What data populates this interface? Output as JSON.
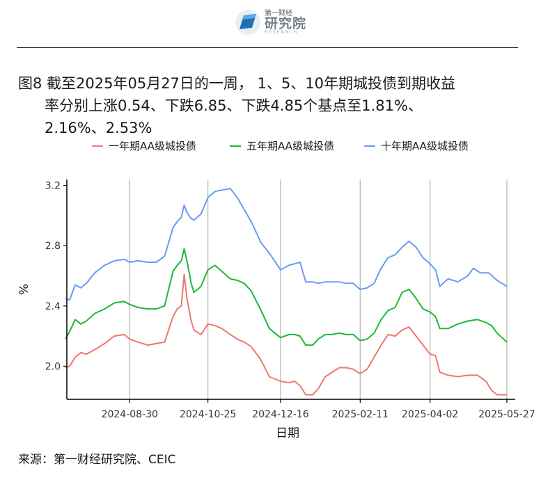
{
  "header": {
    "logo_small": "第一财经",
    "logo_big": "研究院",
    "logo_en": "RESEARCH"
  },
  "title_line1": "图8  截至2025年05月27日的一周， 1、5、10年期城投债到期收益",
  "title_line2": "率分别上涨0.54、下跌6.85、下跌4.85个基点至1.81%、",
  "title_line3": "2.16%、2.53%",
  "source": "来源：第一财经研究院、CEIC",
  "colors": {
    "s1": "#F07670",
    "s5": "#1DB835",
    "s10": "#6A9AF1"
  },
  "chart_data": {
    "type": "line",
    "title": "图8  截至2025年05月27日的一周， 1、5、10年期城投债到期收益率分别上涨0.54、下跌6.85、下跌4.85个基点至1.81%、2.16%、2.53%",
    "xlabel": "日期",
    "ylabel": "%",
    "ylim": [
      1.78,
      3.24
    ],
    "yticks": [
      2.0,
      2.4,
      2.8,
      3.2
    ],
    "ytick_labels": [
      "2.0",
      "2.4",
      "2.8",
      "3.2"
    ],
    "xlim": [
      "2024-07-16",
      "2025-06-02"
    ],
    "xticks": [
      "2024-08-30",
      "2024-10-25",
      "2024-12-16",
      "2025-02-11",
      "2025-04-02",
      "2025-05-27"
    ],
    "grid": "vertical lines at x ticks",
    "legend_position": "top",
    "series": [
      {
        "name": "一年期AA级城投债",
        "color": "#F07670",
        "points": [
          [
            "2024-07-15",
            1.99
          ],
          [
            "2024-07-18",
            2.0
          ],
          [
            "2024-07-22",
            2.06
          ],
          [
            "2024-07-26",
            2.09
          ],
          [
            "2024-07-30",
            2.08
          ],
          [
            "2024-08-05",
            2.11
          ],
          [
            "2024-08-12",
            2.15
          ],
          [
            "2024-08-19",
            2.2
          ],
          [
            "2024-08-26",
            2.21
          ],
          [
            "2024-08-30",
            2.18
          ],
          [
            "2024-09-05",
            2.16
          ],
          [
            "2024-09-12",
            2.14
          ],
          [
            "2024-09-18",
            2.15
          ],
          [
            "2024-09-24",
            2.16
          ],
          [
            "2024-09-30",
            2.33
          ],
          [
            "2024-10-03",
            2.38
          ],
          [
            "2024-10-06",
            2.4
          ],
          [
            "2024-10-08",
            2.61
          ],
          [
            "2024-10-10",
            2.45
          ],
          [
            "2024-10-13",
            2.3
          ],
          [
            "2024-10-15",
            2.24
          ],
          [
            "2024-10-20",
            2.21
          ],
          [
            "2024-10-25",
            2.28
          ],
          [
            "2024-10-30",
            2.27
          ],
          [
            "2024-11-04",
            2.25
          ],
          [
            "2024-11-10",
            2.21
          ],
          [
            "2024-11-15",
            2.18
          ],
          [
            "2024-11-20",
            2.16
          ],
          [
            "2024-11-25",
            2.13
          ],
          [
            "2024-12-02",
            2.04
          ],
          [
            "2024-12-08",
            1.93
          ],
          [
            "2024-12-16",
            1.9
          ],
          [
            "2024-12-22",
            1.89
          ],
          [
            "2024-12-26",
            1.9
          ],
          [
            "2024-12-30",
            1.87
          ],
          [
            "2025-01-03",
            1.81
          ],
          [
            "2025-01-08",
            1.81
          ],
          [
            "2025-01-12",
            1.85
          ],
          [
            "2025-01-17",
            1.93
          ],
          [
            "2025-01-22",
            1.96
          ],
          [
            "2025-01-27",
            1.99
          ],
          [
            "2025-02-01",
            1.99
          ],
          [
            "2025-02-06",
            1.98
          ],
          [
            "2025-02-11",
            1.95
          ],
          [
            "2025-02-16",
            1.98
          ],
          [
            "2025-02-21",
            2.06
          ],
          [
            "2025-02-26",
            2.14
          ],
          [
            "2025-03-03",
            2.21
          ],
          [
            "2025-03-08",
            2.2
          ],
          [
            "2025-03-13",
            2.24
          ],
          [
            "2025-03-18",
            2.26
          ],
          [
            "2025-03-23",
            2.2
          ],
          [
            "2025-03-28",
            2.14
          ],
          [
            "2025-04-02",
            2.08
          ],
          [
            "2025-04-06",
            2.07
          ],
          [
            "2025-04-09",
            1.96
          ],
          [
            "2025-04-15",
            1.94
          ],
          [
            "2025-04-22",
            1.93
          ],
          [
            "2025-04-29",
            1.94
          ],
          [
            "2025-05-06",
            1.94
          ],
          [
            "2025-05-12",
            1.9
          ],
          [
            "2025-05-16",
            1.84
          ],
          [
            "2025-05-20",
            1.81
          ],
          [
            "2025-05-27",
            1.81
          ]
        ]
      },
      {
        "name": "五年期AA级城投债",
        "color": "#1DB835",
        "points": [
          [
            "2024-07-15",
            2.18
          ],
          [
            "2024-07-18",
            2.23
          ],
          [
            "2024-07-22",
            2.31
          ],
          [
            "2024-07-26",
            2.28
          ],
          [
            "2024-07-30",
            2.3
          ],
          [
            "2024-08-05",
            2.35
          ],
          [
            "2024-08-12",
            2.38
          ],
          [
            "2024-08-19",
            2.42
          ],
          [
            "2024-08-26",
            2.43
          ],
          [
            "2024-08-30",
            2.41
          ],
          [
            "2024-09-05",
            2.39
          ],
          [
            "2024-09-12",
            2.38
          ],
          [
            "2024-09-18",
            2.38
          ],
          [
            "2024-09-24",
            2.4
          ],
          [
            "2024-09-30",
            2.63
          ],
          [
            "2024-10-03",
            2.67
          ],
          [
            "2024-10-06",
            2.7
          ],
          [
            "2024-10-08",
            2.78
          ],
          [
            "2024-10-10",
            2.7
          ],
          [
            "2024-10-13",
            2.55
          ],
          [
            "2024-10-15",
            2.49
          ],
          [
            "2024-10-20",
            2.53
          ],
          [
            "2024-10-25",
            2.64
          ],
          [
            "2024-10-30",
            2.67
          ],
          [
            "2024-11-04",
            2.63
          ],
          [
            "2024-11-10",
            2.58
          ],
          [
            "2024-11-15",
            2.57
          ],
          [
            "2024-11-20",
            2.55
          ],
          [
            "2024-11-25",
            2.5
          ],
          [
            "2024-12-02",
            2.37
          ],
          [
            "2024-12-08",
            2.25
          ],
          [
            "2024-12-16",
            2.19
          ],
          [
            "2024-12-22",
            2.21
          ],
          [
            "2024-12-26",
            2.21
          ],
          [
            "2024-12-30",
            2.2
          ],
          [
            "2025-01-03",
            2.14
          ],
          [
            "2025-01-08",
            2.14
          ],
          [
            "2025-01-12",
            2.18
          ],
          [
            "2025-01-17",
            2.21
          ],
          [
            "2025-01-22",
            2.21
          ],
          [
            "2025-01-27",
            2.22
          ],
          [
            "2025-02-01",
            2.21
          ],
          [
            "2025-02-06",
            2.21
          ],
          [
            "2025-02-11",
            2.17
          ],
          [
            "2025-02-16",
            2.18
          ],
          [
            "2025-02-21",
            2.22
          ],
          [
            "2025-02-26",
            2.31
          ],
          [
            "2025-03-03",
            2.37
          ],
          [
            "2025-03-08",
            2.39
          ],
          [
            "2025-03-13",
            2.49
          ],
          [
            "2025-03-18",
            2.51
          ],
          [
            "2025-03-23",
            2.45
          ],
          [
            "2025-03-28",
            2.38
          ],
          [
            "2025-04-02",
            2.36
          ],
          [
            "2025-04-06",
            2.33
          ],
          [
            "2025-04-09",
            2.25
          ],
          [
            "2025-04-15",
            2.25
          ],
          [
            "2025-04-22",
            2.28
          ],
          [
            "2025-04-29",
            2.3
          ],
          [
            "2025-05-06",
            2.31
          ],
          [
            "2025-05-12",
            2.29
          ],
          [
            "2025-05-16",
            2.27
          ],
          [
            "2025-05-20",
            2.22
          ],
          [
            "2025-05-27",
            2.16
          ]
        ]
      },
      {
        "name": "十年期AA级城投债",
        "color": "#6A9AF1",
        "points": [
          [
            "2024-07-15",
            2.45
          ],
          [
            "2024-07-18",
            2.44
          ],
          [
            "2024-07-22",
            2.54
          ],
          [
            "2024-07-26",
            2.52
          ],
          [
            "2024-07-30",
            2.55
          ],
          [
            "2024-08-05",
            2.62
          ],
          [
            "2024-08-12",
            2.67
          ],
          [
            "2024-08-19",
            2.7
          ],
          [
            "2024-08-26",
            2.71
          ],
          [
            "2024-08-30",
            2.69
          ],
          [
            "2024-09-05",
            2.7
          ],
          [
            "2024-09-12",
            2.69
          ],
          [
            "2024-09-18",
            2.69
          ],
          [
            "2024-09-24",
            2.73
          ],
          [
            "2024-09-30",
            2.92
          ],
          [
            "2024-10-03",
            2.96
          ],
          [
            "2024-10-06",
            2.99
          ],
          [
            "2024-10-08",
            3.07
          ],
          [
            "2024-10-10",
            3.02
          ],
          [
            "2024-10-13",
            2.98
          ],
          [
            "2024-10-15",
            2.97
          ],
          [
            "2024-10-20",
            3.01
          ],
          [
            "2024-10-25",
            3.12
          ],
          [
            "2024-10-30",
            3.16
          ],
          [
            "2024-11-04",
            3.17
          ],
          [
            "2024-11-10",
            3.18
          ],
          [
            "2024-11-15",
            3.12
          ],
          [
            "2024-11-20",
            3.04
          ],
          [
            "2024-11-25",
            2.96
          ],
          [
            "2024-12-02",
            2.82
          ],
          [
            "2024-12-08",
            2.75
          ],
          [
            "2024-12-16",
            2.64
          ],
          [
            "2024-12-22",
            2.67
          ],
          [
            "2024-12-26",
            2.68
          ],
          [
            "2024-12-30",
            2.69
          ],
          [
            "2025-01-03",
            2.56
          ],
          [
            "2025-01-08",
            2.56
          ],
          [
            "2025-01-12",
            2.55
          ],
          [
            "2025-01-17",
            2.56
          ],
          [
            "2025-01-22",
            2.56
          ],
          [
            "2025-01-27",
            2.56
          ],
          [
            "2025-02-01",
            2.55
          ],
          [
            "2025-02-06",
            2.55
          ],
          [
            "2025-02-11",
            2.51
          ],
          [
            "2025-02-16",
            2.52
          ],
          [
            "2025-02-21",
            2.55
          ],
          [
            "2025-02-26",
            2.65
          ],
          [
            "2025-03-03",
            2.72
          ],
          [
            "2025-03-08",
            2.74
          ],
          [
            "2025-03-13",
            2.79
          ],
          [
            "2025-03-18",
            2.83
          ],
          [
            "2025-03-23",
            2.79
          ],
          [
            "2025-03-28",
            2.72
          ],
          [
            "2025-04-02",
            2.68
          ],
          [
            "2025-04-06",
            2.64
          ],
          [
            "2025-04-09",
            2.53
          ],
          [
            "2025-04-15",
            2.58
          ],
          [
            "2025-04-22",
            2.56
          ],
          [
            "2025-04-29",
            2.6
          ],
          [
            "2025-05-03",
            2.65
          ],
          [
            "2025-05-08",
            2.62
          ],
          [
            "2025-05-14",
            2.62
          ],
          [
            "2025-05-20",
            2.57
          ],
          [
            "2025-05-27",
            2.53
          ]
        ]
      }
    ]
  }
}
